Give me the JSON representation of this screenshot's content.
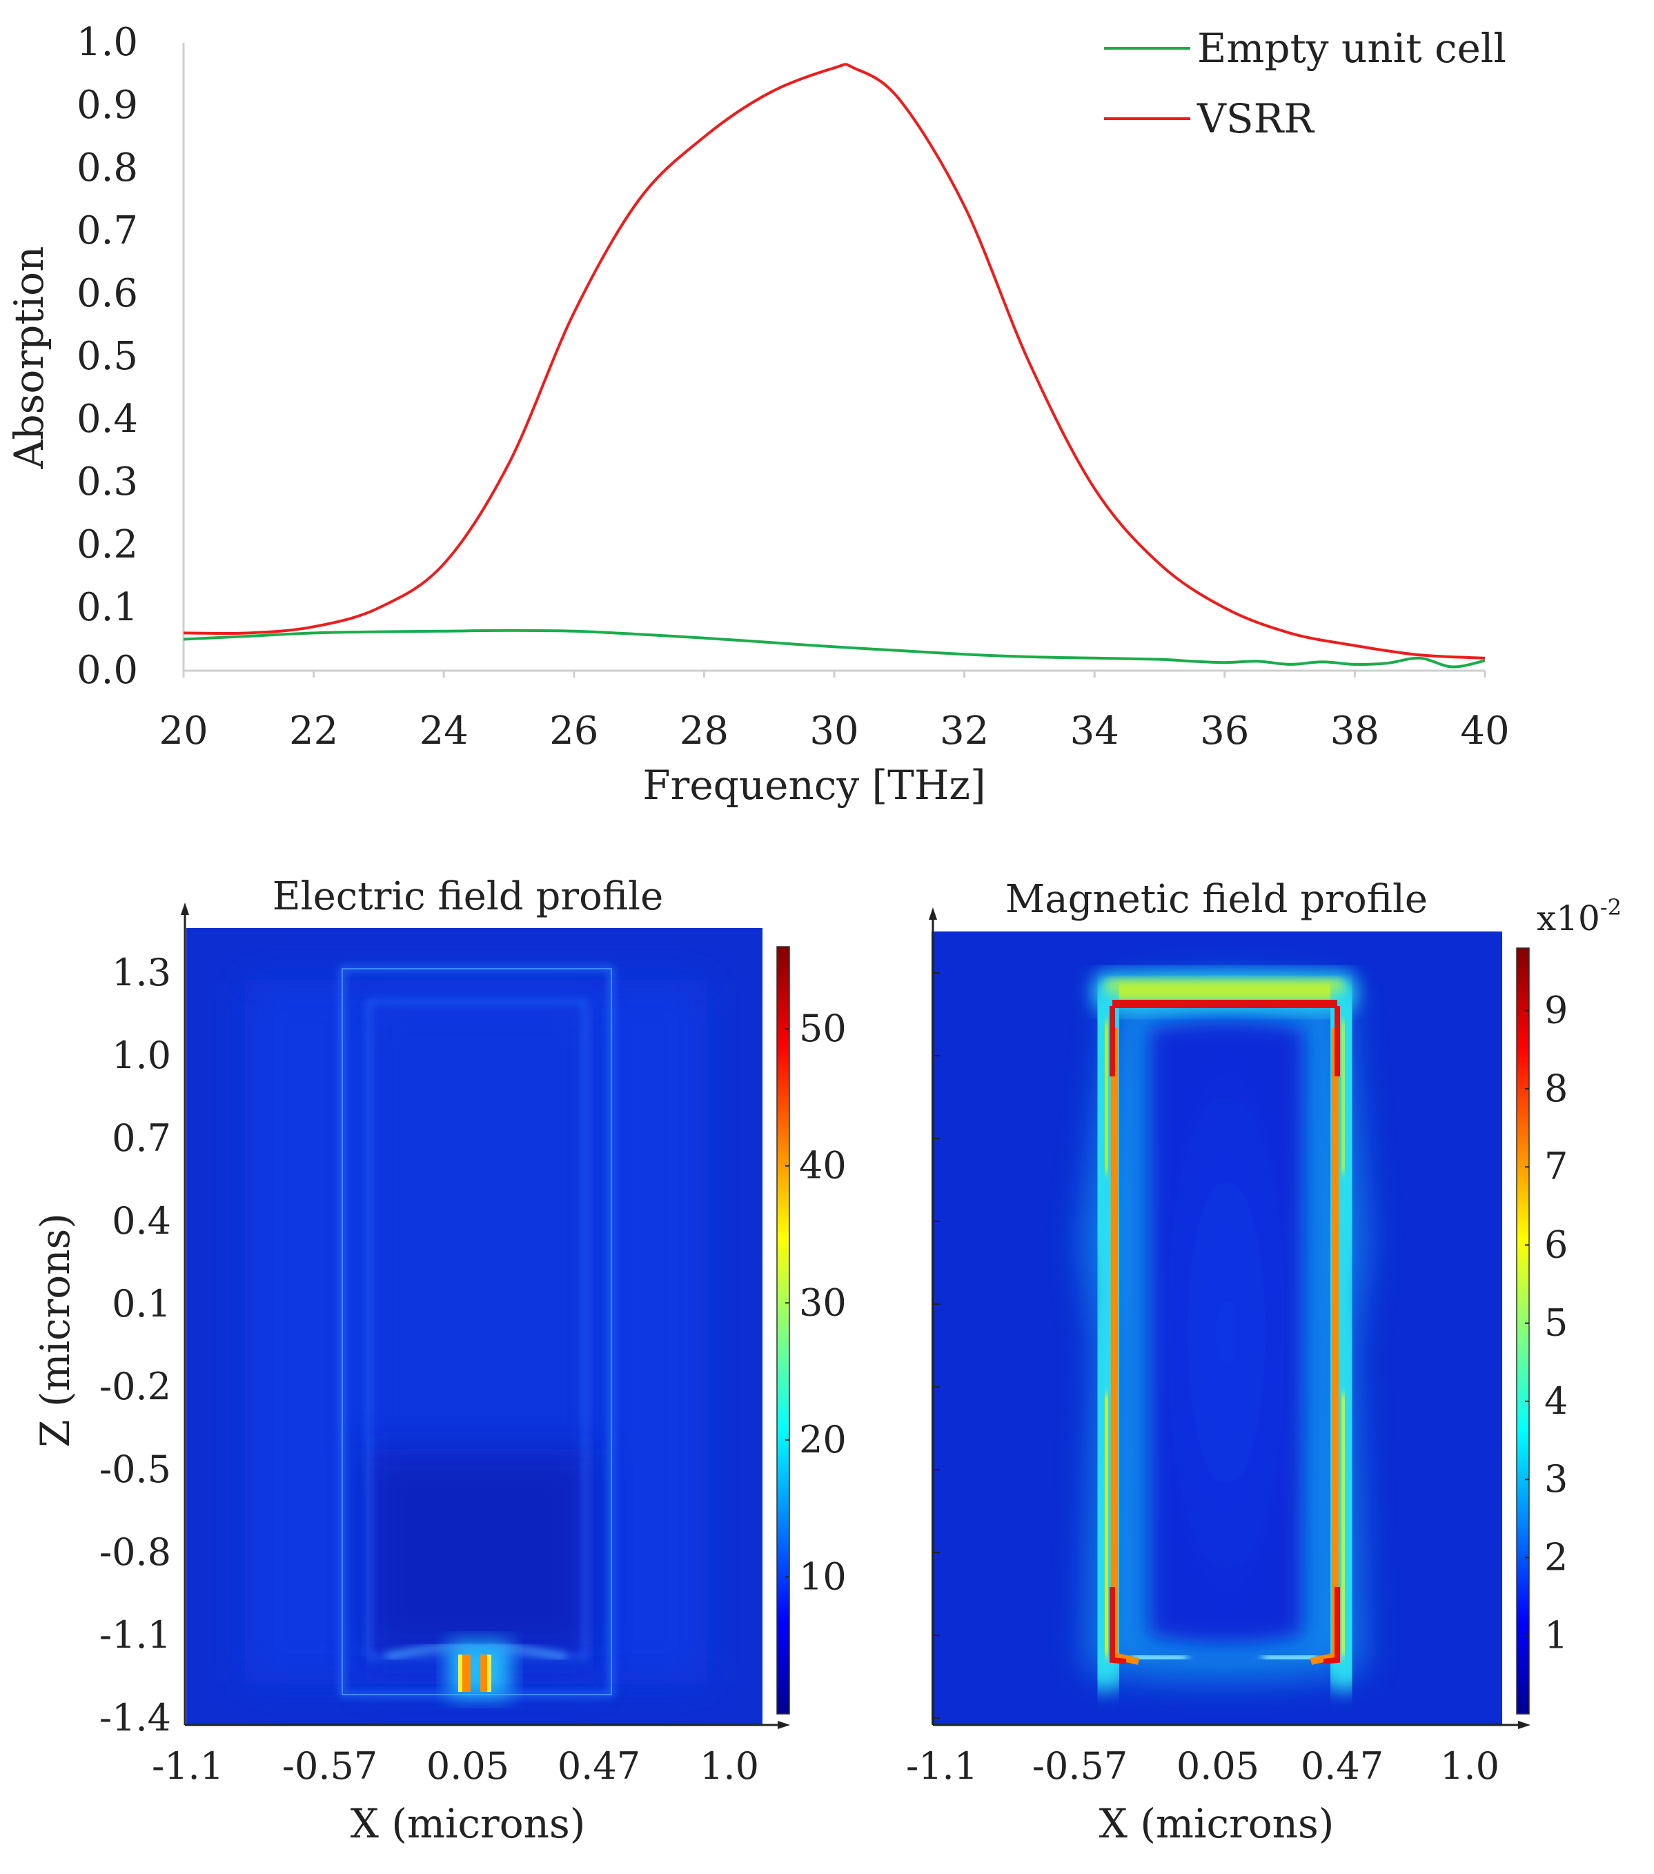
{
  "chart_data": [
    {
      "type": "line",
      "xlabel": "Frequency [THz]",
      "ylabel": "Absorption",
      "xlim": [
        20,
        40
      ],
      "ylim": [
        0.0,
        1.0
      ],
      "xticks": [
        "20",
        "22",
        "24",
        "26",
        "28",
        "30",
        "32",
        "34",
        "36",
        "38",
        "40"
      ],
      "yticks": [
        "0.0",
        "0.1",
        "0.2",
        "0.3",
        "0.4",
        "0.5",
        "0.6",
        "0.7",
        "0.8",
        "0.9",
        "1.0"
      ],
      "legend_position": "top-right",
      "series": [
        {
          "name": "Empty unit cell",
          "color": "#1aad4b",
          "x": [
            20,
            21,
            22,
            23,
            24,
            25,
            26,
            27,
            28,
            29,
            30,
            31,
            32,
            33,
            34,
            35,
            35.5,
            36,
            36.5,
            37,
            37.5,
            38,
            38.5,
            39,
            39.5,
            40
          ],
          "y": [
            0.05,
            0.055,
            0.06,
            0.062,
            0.063,
            0.064,
            0.063,
            0.058,
            0.052,
            0.045,
            0.038,
            0.032,
            0.026,
            0.022,
            0.02,
            0.018,
            0.015,
            0.013,
            0.015,
            0.01,
            0.014,
            0.01,
            0.012,
            0.02,
            0.006,
            0.016
          ]
        },
        {
          "name": "VSRR",
          "color": "#ee1c1c",
          "x": [
            20,
            21,
            22,
            23,
            24,
            25,
            26,
            27,
            28,
            29,
            30,
            30.3,
            31,
            32,
            33,
            34,
            35,
            36,
            37,
            38,
            39,
            40
          ],
          "y": [
            0.06,
            0.06,
            0.07,
            0.1,
            0.17,
            0.33,
            0.57,
            0.75,
            0.85,
            0.92,
            0.96,
            0.96,
            0.91,
            0.74,
            0.49,
            0.29,
            0.17,
            0.1,
            0.06,
            0.04,
            0.025,
            0.02
          ]
        }
      ]
    },
    {
      "type": "heatmap",
      "title": "Electric field profile",
      "xlabel": "X (microns)",
      "ylabel": "Z (microns)",
      "xticks": [
        "-1.1",
        "-0.57",
        "0.05",
        "0.47",
        "1.0"
      ],
      "yticks": [
        "1.3",
        "1.0",
        "0.7",
        "0.4",
        "0.1",
        "-0.2",
        "-0.5",
        "-0.8",
        "-1.1",
        "-1.4"
      ],
      "colorbar_ticks": [
        "10",
        "20",
        "30",
        "40",
        "50"
      ],
      "colorbar_range": [
        0,
        56
      ],
      "colormap": "jet"
    },
    {
      "type": "heatmap",
      "title": "Magnetic field profile",
      "xlabel": "X (microns)",
      "xticks": [
        "-1.1",
        "-0.57",
        "0.05",
        "0.47",
        "1.0"
      ],
      "colorbar_ticks": [
        "1",
        "2",
        "3",
        "4",
        "5",
        "6",
        "7",
        "8",
        "9"
      ],
      "colorbar_range": [
        0,
        9.8
      ],
      "colorbar_scale": "x10",
      "colorbar_scale_exponent": "-2",
      "colormap": "jet"
    }
  ]
}
